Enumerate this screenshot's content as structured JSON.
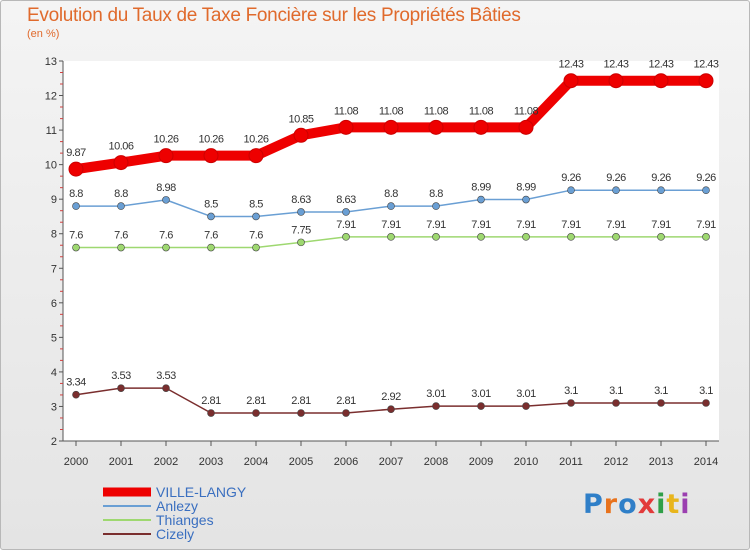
{
  "header": {
    "title": "Evolution du Taux de Taxe Foncière sur les Propriétés Bâties",
    "subtitle": "(en %)"
  },
  "logo": {
    "text": "Proxiti",
    "colors": [
      "#2f7fc8",
      "#e8721c",
      "#2f7fc8",
      "#e23a3a",
      "#2f9f48",
      "#e8b51c",
      "#9b3fb0"
    ]
  },
  "chart_data": {
    "type": "line",
    "title": "Evolution du Taux de Taxe Foncière sur les Propriétés Bâties",
    "ylabel": "(en %)",
    "xlabel": "",
    "categories": [
      "2000",
      "2001",
      "2002",
      "2003",
      "2004",
      "2005",
      "2006",
      "2007",
      "2008",
      "2009",
      "2010",
      "2011",
      "2012",
      "2013",
      "2014"
    ],
    "ylim": [
      2,
      13
    ],
    "yticks": [
      2,
      3,
      4,
      5,
      6,
      7,
      8,
      9,
      10,
      11,
      12,
      13
    ],
    "legend_position": "bottom-left",
    "series": [
      {
        "name": "VILLE-LANGY",
        "color": "#ee0000",
        "values": [
          9.87,
          10.06,
          10.26,
          10.26,
          10.26,
          10.85,
          11.08,
          11.08,
          11.08,
          11.08,
          11.08,
          12.43,
          12.43,
          12.43,
          12.43
        ],
        "labels": [
          "9.87",
          "10.06",
          "10.26",
          "10.26",
          "10.26",
          "10.85",
          "11.08",
          "11.08",
          "11.08",
          "11.08",
          "11.08",
          "12.43",
          "12.43",
          "12.43",
          "12.43"
        ]
      },
      {
        "name": "Anlezy",
        "color": "#6a9fd4",
        "values": [
          8.8,
          8.8,
          8.98,
          8.5,
          8.5,
          8.63,
          8.63,
          8.8,
          8.8,
          8.99,
          8.99,
          9.26,
          9.26,
          9.26,
          9.26
        ],
        "labels": [
          "8.8",
          "8.8",
          "8.98",
          "8.5",
          "8.5",
          "8.63",
          "8.63",
          "8.8",
          "8.8",
          "8.99",
          "8.99",
          "9.26",
          "9.26",
          "9.26",
          "9.26"
        ]
      },
      {
        "name": "Thianges",
        "color": "#9ed870",
        "values": [
          7.6,
          7.6,
          7.6,
          7.6,
          7.6,
          7.75,
          7.91,
          7.91,
          7.91,
          7.91,
          7.91,
          7.91,
          7.91,
          7.91,
          7.91
        ],
        "labels": [
          "7.6",
          "7.6",
          "7.6",
          "7.6",
          "7.6",
          "7.75",
          "7.91",
          "7.91",
          "7.91",
          "7.91",
          "7.91",
          "7.91",
          "7.91",
          "7.91",
          "7.91"
        ]
      },
      {
        "name": "Cizely",
        "color": "#7a2e2e",
        "values": [
          3.34,
          3.53,
          3.53,
          2.81,
          2.81,
          2.81,
          2.81,
          2.92,
          3.01,
          3.01,
          3.01,
          3.1,
          3.1,
          3.1,
          3.1
        ],
        "labels": [
          "3.34",
          "3.53",
          "3.53",
          "2.81",
          "2.81",
          "2.81",
          "2.81",
          "2.92",
          "3.01",
          "3.01",
          "3.01",
          "3.1",
          "3.1",
          "3.1",
          "3.1"
        ]
      }
    ]
  }
}
